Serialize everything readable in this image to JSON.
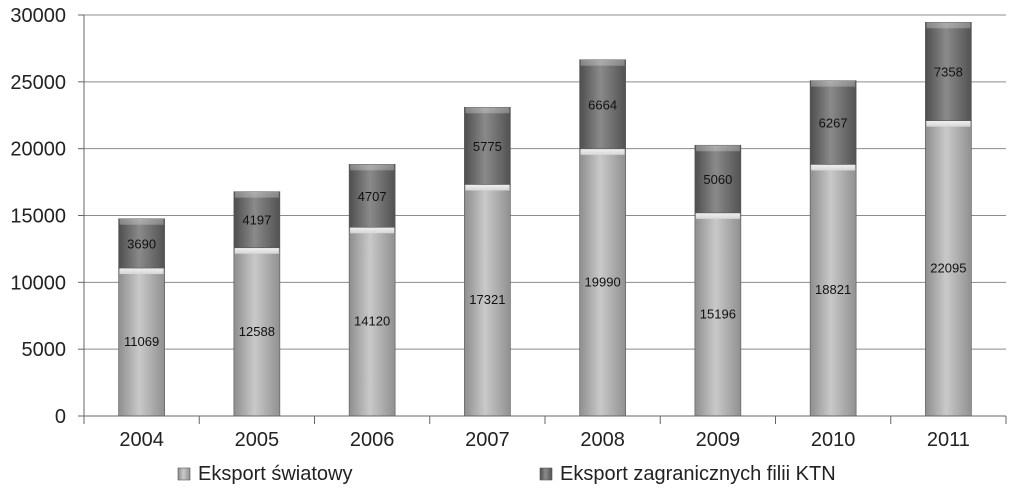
{
  "chart_data": {
    "type": "bar",
    "stacked": true,
    "categories": [
      "2004",
      "2005",
      "2006",
      "2007",
      "2008",
      "2009",
      "2010",
      "2011"
    ],
    "series": [
      {
        "name": "Eksport światowy",
        "values": [
          11069,
          12588,
          14120,
          17321,
          19990,
          15196,
          18821,
          22095
        ],
        "color": "#a9a9a9"
      },
      {
        "name": "Eksport zagranicznych filii KTN",
        "values": [
          3690,
          4197,
          4707,
          5775,
          6664,
          5060,
          6267,
          7358
        ],
        "color": "#6a6a6a"
      }
    ],
    "ylim": [
      0,
      30000
    ],
    "yticks": [
      0,
      5000,
      10000,
      15000,
      20000,
      25000,
      30000
    ],
    "grid": true,
    "legend_position": "bottom",
    "data_labels": true
  }
}
